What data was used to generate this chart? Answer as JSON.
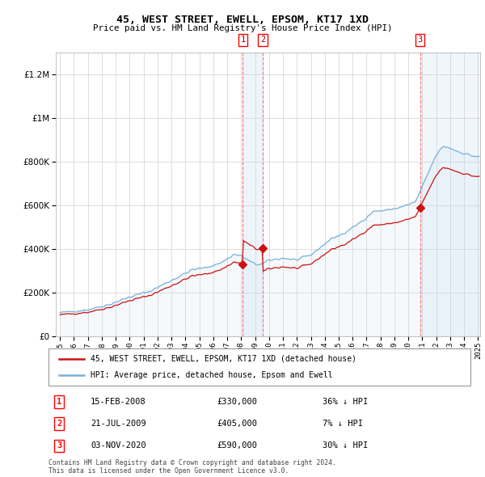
{
  "title": "45, WEST STREET, EWELL, EPSOM, KT17 1XD",
  "subtitle": "Price paid vs. HM Land Registry's House Price Index (HPI)",
  "ylim": [
    0,
    1300000
  ],
  "yticks": [
    0,
    200000,
    400000,
    600000,
    800000,
    1000000,
    1200000
  ],
  "hpi_color": "#7ab0d8",
  "hpi_fill_color": "#c8dff0",
  "price_color": "#cc1111",
  "transactions": [
    {
      "date_num": 2008.12,
      "price": 330000,
      "label": "1",
      "date_str": "15-FEB-2008",
      "price_str": "£330,000",
      "pct": "36%",
      "dir": "↓"
    },
    {
      "date_num": 2009.55,
      "price": 405000,
      "label": "2",
      "date_str": "21-JUL-2009",
      "price_str": "£405,000",
      "pct": "7%",
      "dir": "↓"
    },
    {
      "date_num": 2020.84,
      "price": 590000,
      "label": "3",
      "date_str": "03-NOV-2020",
      "price_str": "£590,000",
      "pct": "30%",
      "dir": "↓"
    }
  ],
  "legend_label_red": "45, WEST STREET, EWELL, EPSOM, KT17 1XD (detached house)",
  "legend_label_blue": "HPI: Average price, detached house, Epsom and Ewell",
  "footer1": "Contains HM Land Registry data © Crown copyright and database right 2024.",
  "footer2": "This data is licensed under the Open Government Licence v3.0."
}
